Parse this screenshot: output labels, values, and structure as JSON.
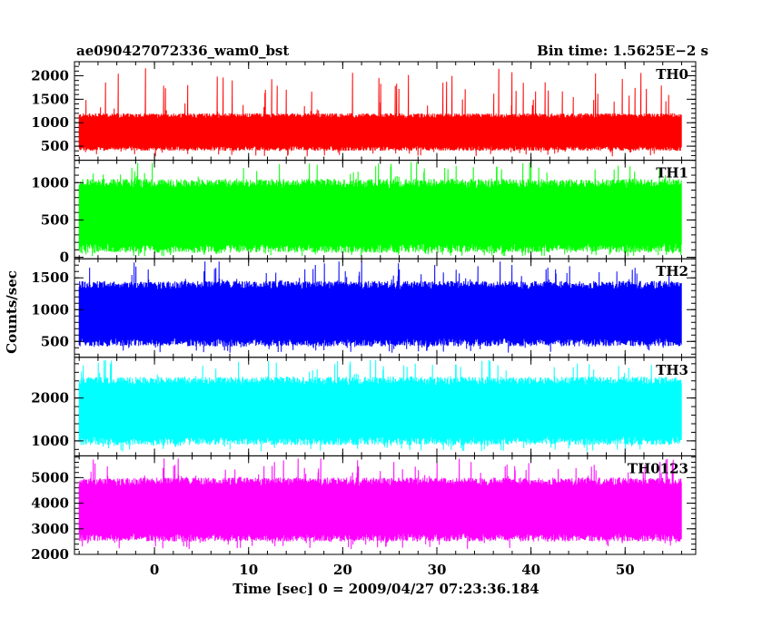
{
  "chart_data": {
    "type": "line",
    "title_left": "ae090427072336_wam0_bst",
    "title_right": "Bin time: 1.5625E−2 s",
    "xlabel": "Time [sec] 0 = 2009/04/27 07:23:36.184",
    "ylabel": "Counts/sec",
    "xlim": [
      -8.5,
      57.5
    ],
    "x_ticks": [
      0,
      10,
      20,
      30,
      40,
      50
    ],
    "data_range": [
      -8,
      56
    ],
    "bin_time": 0.015625,
    "grid": false,
    "panels": [
      {
        "name": "TH0",
        "color": "#ff0000",
        "ylim": [
          200,
          2300
        ],
        "y_ticks": [
          500,
          1000,
          1500,
          2000
        ],
        "low": 400,
        "high": 1200,
        "spike_max": 2200
      },
      {
        "name": "TH1",
        "color": "#00ff00",
        "ylim": [
          -20,
          1300
        ],
        "y_ticks": [
          0,
          500,
          1000
        ],
        "low": 60,
        "high": 1050,
        "spike_max": 1280
      },
      {
        "name": "TH2",
        "color": "#0000ff",
        "ylim": [
          250,
          1800
        ],
        "y_ticks": [
          500,
          1000,
          1500
        ],
        "low": 420,
        "high": 1450,
        "spike_max": 1760
      },
      {
        "name": "TH3",
        "color": "#00ffff",
        "ylim": [
          650,
          2950
        ],
        "y_ticks": [
          1000,
          2000
        ],
        "low": 900,
        "high": 2500,
        "spike_max": 2900
      },
      {
        "name": "TH0123",
        "color": "#ff00ff",
        "ylim": [
          2000,
          5850
        ],
        "y_ticks": [
          2000,
          3000,
          4000,
          5000
        ],
        "low": 2500,
        "high": 5000,
        "spike_max": 5750
      }
    ]
  }
}
